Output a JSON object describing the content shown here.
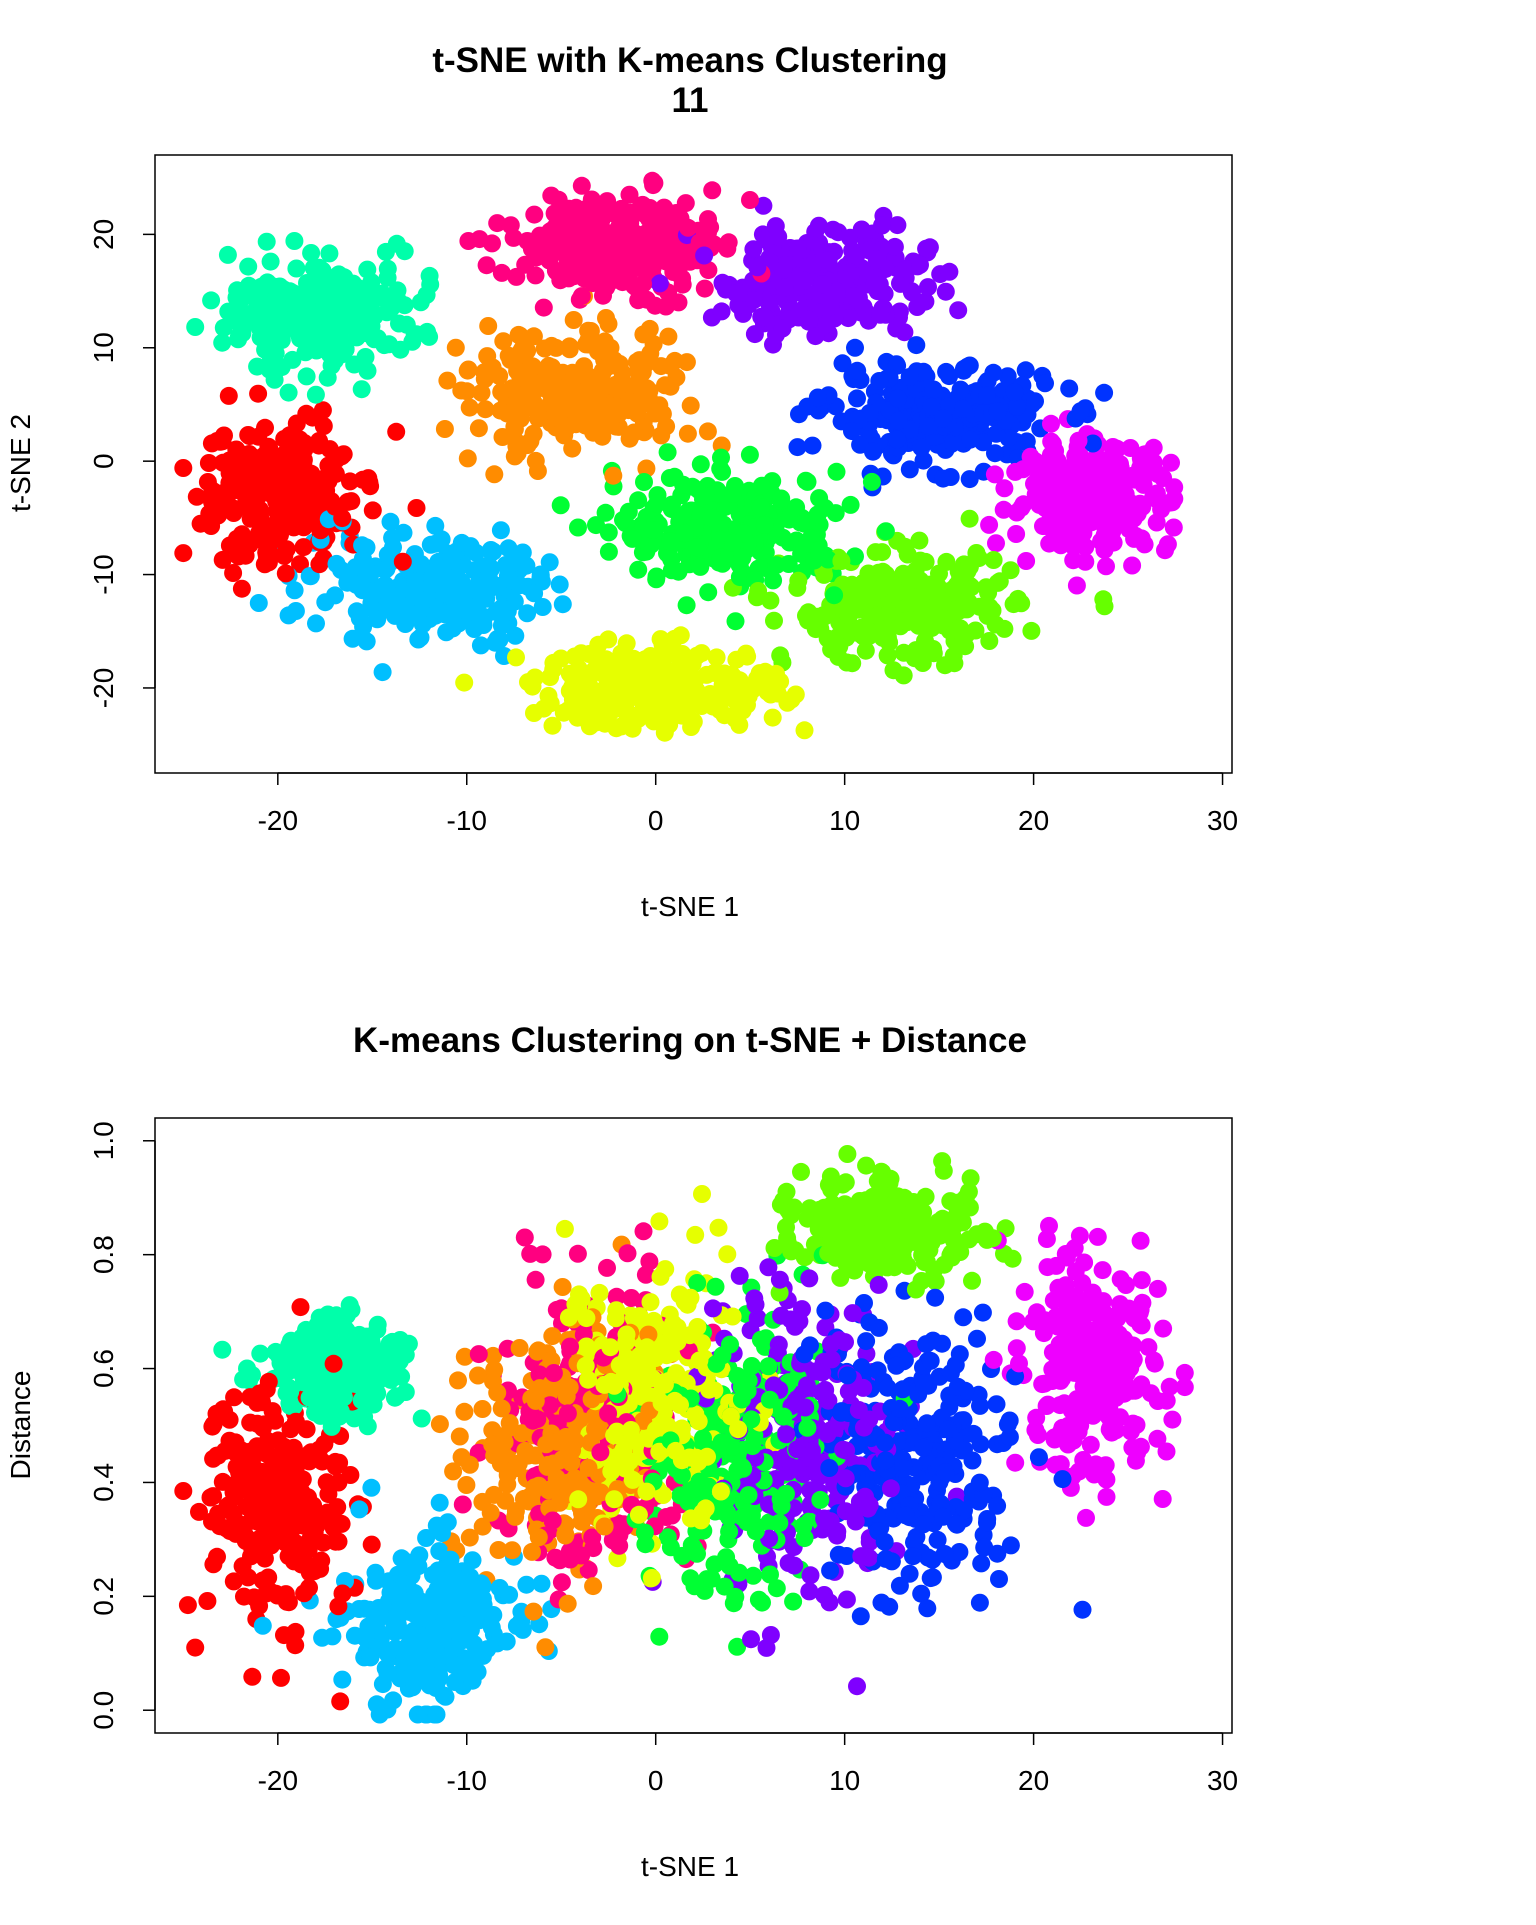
{
  "chart_data": [
    {
      "type": "scatter",
      "title": "t-SNE with K-means Clustering",
      "subtitle": "11",
      "xlabel": "t-SNE 1",
      "ylabel": "t-SNE 2",
      "xlim": [
        -26.5,
        30.5
      ],
      "ylim": [
        -27.5,
        27
      ],
      "xticks": [
        -20,
        -10,
        0,
        10,
        20,
        30
      ],
      "yticks": [
        -20,
        -10,
        0,
        10,
        20
      ],
      "grid": false,
      "clusters": [
        {
          "color": "#FF0000",
          "center": [
            -20,
            -3
          ],
          "spread": [
            3.5,
            5
          ]
        },
        {
          "color": "#00FFAA",
          "center": [
            -18,
            13
          ],
          "spread": [
            4,
            4
          ]
        },
        {
          "color": "#00BFFF",
          "center": [
            -12,
            -11
          ],
          "spread": [
            5,
            4
          ]
        },
        {
          "color": "#FF8C00",
          "center": [
            -4,
            6
          ],
          "spread": [
            5,
            4.5
          ]
        },
        {
          "color": "#FF0080",
          "center": [
            -2,
            19
          ],
          "spread": [
            5,
            3.5
          ]
        },
        {
          "color": "#7F00FF",
          "center": [
            9,
            16
          ],
          "spread": [
            4.5,
            4
          ]
        },
        {
          "color": "#0033FF",
          "center": [
            15,
            4
          ],
          "spread": [
            5,
            3.5
          ]
        },
        {
          "color": "#EE00FF",
          "center": [
            23,
            -3
          ],
          "spread": [
            3.5,
            4
          ]
        },
        {
          "color": "#00FF33",
          "center": [
            4,
            -6
          ],
          "spread": [
            5,
            4
          ]
        },
        {
          "color": "#66FF00",
          "center": [
            13,
            -13
          ],
          "spread": [
            5,
            4
          ]
        },
        {
          "color": "#E6FF00",
          "center": [
            0,
            -20
          ],
          "spread": [
            5.5,
            3
          ]
        }
      ]
    },
    {
      "type": "scatter",
      "title": "K-means Clustering on t-SNE + Distance",
      "xlabel": "t-SNE 1",
      "ylabel": "Distance",
      "xlim": [
        -26.5,
        30.5
      ],
      "ylim": [
        -0.04,
        1.04
      ],
      "xticks": [
        -20,
        -10,
        0,
        10,
        20,
        30
      ],
      "yticks": [
        0.0,
        0.2,
        0.4,
        0.6,
        0.8,
        1.0
      ],
      "ytick_labels": [
        "0.0",
        "0.2",
        "0.4",
        "0.6",
        "0.8",
        "1.0"
      ],
      "grid": false,
      "clusters": [
        {
          "color": "#FF0000",
          "center": [
            -20,
            0.35
          ],
          "spread": [
            3,
            0.18
          ]
        },
        {
          "color": "#00FFAA",
          "center": [
            -17,
            0.6
          ],
          "spread": [
            3,
            0.07
          ]
        },
        {
          "color": "#00BFFF",
          "center": [
            -12,
            0.15
          ],
          "spread": [
            4,
            0.12
          ]
        },
        {
          "color": "#FF8C00",
          "center": [
            -5,
            0.45
          ],
          "spread": [
            4,
            0.18
          ]
        },
        {
          "color": "#FF0080",
          "center": [
            -3,
            0.5
          ],
          "spread": [
            4,
            0.2
          ]
        },
        {
          "color": "#E6FF00",
          "center": [
            0,
            0.55
          ],
          "spread": [
            4,
            0.2
          ]
        },
        {
          "color": "#00FF33",
          "center": [
            4,
            0.45
          ],
          "spread": [
            4,
            0.2
          ]
        },
        {
          "color": "#7F00FF",
          "center": [
            8,
            0.45
          ],
          "spread": [
            4,
            0.22
          ]
        },
        {
          "color": "#0033FF",
          "center": [
            14,
            0.45
          ],
          "spread": [
            4.5,
            0.2
          ]
        },
        {
          "color": "#66FF00",
          "center": [
            12,
            0.85
          ],
          "spread": [
            4,
            0.07
          ]
        },
        {
          "color": "#EE00FF",
          "center": [
            23,
            0.6
          ],
          "spread": [
            3,
            0.15
          ]
        }
      ]
    }
  ]
}
